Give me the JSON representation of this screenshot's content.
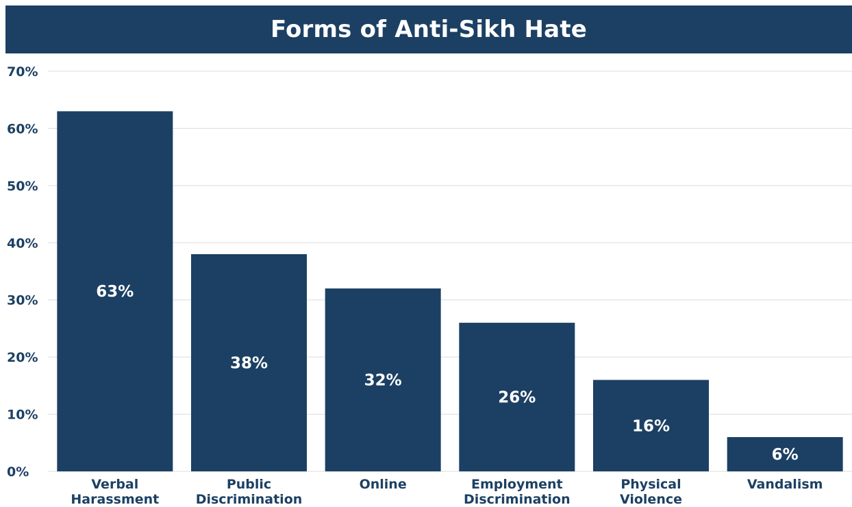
{
  "colors": {
    "title_background": "#1c4063",
    "bar": "#1c4063",
    "text": "#1c4063",
    "data_label": "#ffffff",
    "grid": "#dcdcdc"
  },
  "chart_data": {
    "type": "bar",
    "title": "Forms of Anti-Sikh Hate",
    "categories": [
      [
        "Verbal",
        "Harassment"
      ],
      [
        "Public",
        "Discrimination"
      ],
      [
        "Online"
      ],
      [
        "Employment",
        "Discrimination"
      ],
      [
        "Physical",
        "Violence"
      ],
      [
        "Vandalism"
      ]
    ],
    "values": [
      63,
      38,
      32,
      26,
      16,
      6
    ],
    "value_labels": [
      "63%",
      "38%",
      "32%",
      "26%",
      "16%",
      "6%"
    ],
    "ylim": [
      0,
      70
    ],
    "yticks": [
      0,
      10,
      20,
      30,
      40,
      50,
      60,
      70
    ],
    "ytick_labels": [
      "0%",
      "10%",
      "20%",
      "30%",
      "40%",
      "50%",
      "60%",
      "70%"
    ],
    "xlabel": "",
    "ylabel": "",
    "grid": true,
    "legend": "none"
  }
}
